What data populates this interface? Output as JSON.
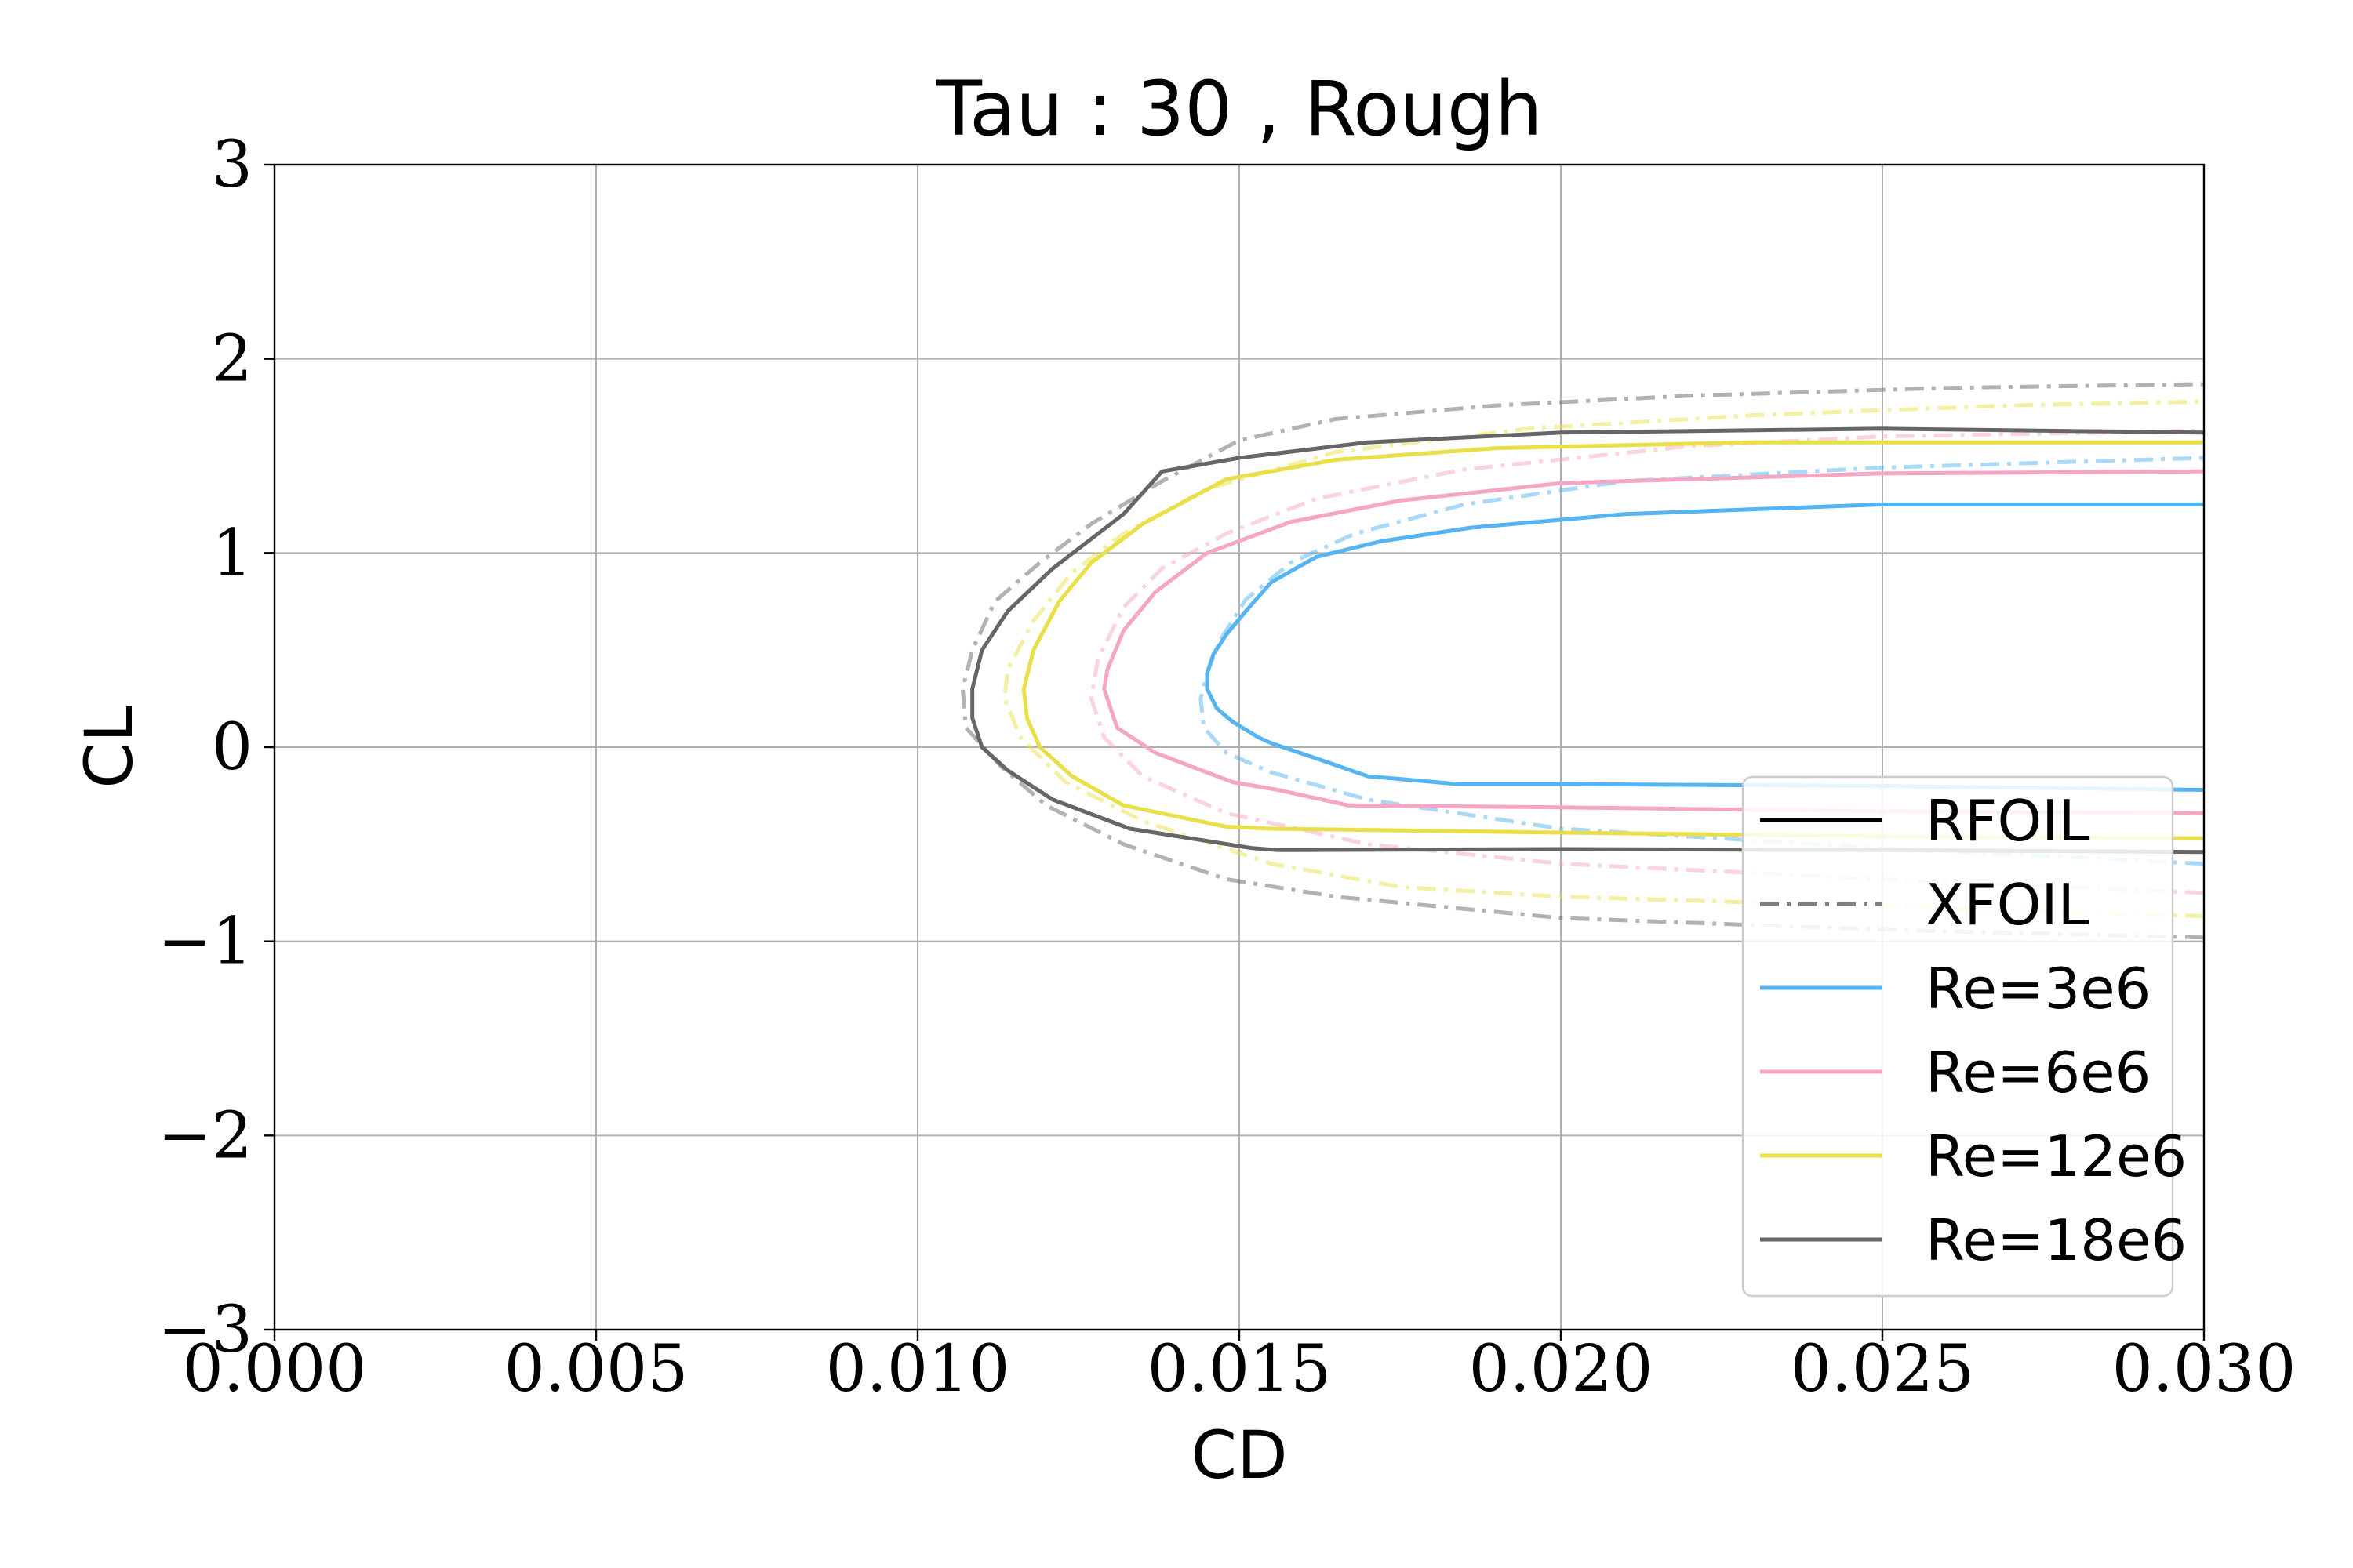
{
  "chart_data": {
    "type": "line",
    "title": "Tau : 30 , Rough",
    "xlabel": "CD",
    "ylabel": "CL",
    "xlim": [
      0.0,
      0.03
    ],
    "ylim": [
      -3,
      3
    ],
    "xticks": [
      0.0,
      0.005,
      0.01,
      0.015,
      0.02,
      0.025,
      0.03
    ],
    "xtick_labels": [
      "0.000",
      "0.005",
      "0.010",
      "0.015",
      "0.020",
      "0.025",
      "0.030"
    ],
    "yticks": [
      -3,
      -2,
      -1,
      0,
      1,
      2,
      3
    ],
    "ytick_labels": [
      "−3",
      "−2",
      "−1",
      "0",
      "1",
      "2",
      "3"
    ],
    "grid": true,
    "legend_position": "lower-right",
    "legend": [
      {
        "label": "RFOIL",
        "color": "#000000",
        "style": "solid"
      },
      {
        "label": "XFOIL",
        "color": "#808080",
        "style": "dashdot"
      },
      {
        "label": "Re=3e6",
        "color": "#56b4f0",
        "style": "solid"
      },
      {
        "label": "Re=6e6",
        "color": "#f5a6c4",
        "style": "solid"
      },
      {
        "label": "Re=12e6",
        "color": "#e9df48",
        "style": "solid"
      },
      {
        "label": "Re=18e6",
        "color": "#666666",
        "style": "solid"
      }
    ],
    "series": [
      {
        "re": "Re=3e6",
        "solver": "RFOIL",
        "color": "#56b4f0",
        "style": "solid",
        "alpha": 1.0,
        "points": [
          [
            0.03,
            -0.22
          ],
          [
            0.025,
            -0.2
          ],
          [
            0.02,
            -0.19
          ],
          [
            0.0184,
            -0.19
          ],
          [
            0.017,
            -0.15
          ],
          [
            0.0163,
            -0.07
          ],
          [
            0.0155,
            0.02
          ],
          [
            0.0153,
            0.05
          ],
          [
            0.0149,
            0.13
          ],
          [
            0.01465,
            0.2
          ],
          [
            0.0145,
            0.3
          ],
          [
            0.0145,
            0.38
          ],
          [
            0.0146,
            0.48
          ],
          [
            0.0148,
            0.58
          ],
          [
            0.0151,
            0.7
          ],
          [
            0.0155,
            0.85
          ],
          [
            0.0162,
            0.98
          ],
          [
            0.0172,
            1.06
          ],
          [
            0.0186,
            1.13
          ],
          [
            0.021,
            1.2
          ],
          [
            0.025,
            1.25
          ],
          [
            0.03,
            1.25
          ]
        ]
      },
      {
        "re": "Re=3e6",
        "solver": "XFOIL",
        "color": "#56b4f0",
        "style": "dashdot",
        "alpha": 0.5,
        "points": [
          [
            0.03,
            -0.6
          ],
          [
            0.025,
            -0.52
          ],
          [
            0.02,
            -0.42
          ],
          [
            0.017,
            -0.27
          ],
          [
            0.0155,
            -0.13
          ],
          [
            0.0148,
            -0.03
          ],
          [
            0.01445,
            0.1
          ],
          [
            0.0144,
            0.25
          ],
          [
            0.0145,
            0.38
          ],
          [
            0.0147,
            0.55
          ],
          [
            0.0151,
            0.76
          ],
          [
            0.0158,
            0.95
          ],
          [
            0.0168,
            1.1
          ],
          [
            0.0185,
            1.25
          ],
          [
            0.021,
            1.37
          ],
          [
            0.025,
            1.44
          ],
          [
            0.03,
            1.49
          ]
        ]
      },
      {
        "re": "Re=6e6",
        "solver": "RFOIL",
        "color": "#f5a6c4",
        "style": "solid",
        "alpha": 1.0,
        "points": [
          [
            0.03,
            -0.34
          ],
          [
            0.025,
            -0.33
          ],
          [
            0.02,
            -0.31
          ],
          [
            0.0167,
            -0.3
          ],
          [
            0.0156,
            -0.22
          ],
          [
            0.0149,
            -0.18
          ],
          [
            0.0137,
            -0.03
          ],
          [
            0.0131,
            0.1
          ],
          [
            0.0129,
            0.3
          ],
          [
            0.01295,
            0.4
          ],
          [
            0.0132,
            0.6
          ],
          [
            0.0137,
            0.8
          ],
          [
            0.0145,
            1.0
          ],
          [
            0.0158,
            1.16
          ],
          [
            0.0175,
            1.27
          ],
          [
            0.02,
            1.36
          ],
          [
            0.025,
            1.41
          ],
          [
            0.03,
            1.42
          ]
        ]
      },
      {
        "re": "Re=6e6",
        "solver": "XFOIL",
        "color": "#f5a6c4",
        "style": "dashdot",
        "alpha": 0.5,
        "points": [
          [
            0.03,
            -0.75
          ],
          [
            0.025,
            -0.68
          ],
          [
            0.02,
            -0.6
          ],
          [
            0.017,
            -0.5
          ],
          [
            0.0148,
            -0.34
          ],
          [
            0.0135,
            -0.15
          ],
          [
            0.0129,
            0.05
          ],
          [
            0.0127,
            0.25
          ],
          [
            0.0128,
            0.45
          ],
          [
            0.0132,
            0.72
          ],
          [
            0.0138,
            0.92
          ],
          [
            0.0148,
            1.1
          ],
          [
            0.0162,
            1.28
          ],
          [
            0.0185,
            1.43
          ],
          [
            0.022,
            1.55
          ],
          [
            0.025,
            1.6
          ],
          [
            0.03,
            1.63
          ]
        ]
      },
      {
        "re": "Re=12e6",
        "solver": "RFOIL",
        "color": "#e9df48",
        "style": "solid",
        "alpha": 1.0,
        "points": [
          [
            0.03,
            -0.47
          ],
          [
            0.025,
            -0.46
          ],
          [
            0.02,
            -0.44
          ],
          [
            0.0155,
            -0.42
          ],
          [
            0.0148,
            -0.41
          ],
          [
            0.0132,
            -0.3
          ],
          [
            0.0124,
            -0.15
          ],
          [
            0.0119,
            0.0
          ],
          [
            0.0117,
            0.15
          ],
          [
            0.01165,
            0.3
          ],
          [
            0.0118,
            0.5
          ],
          [
            0.0122,
            0.75
          ],
          [
            0.0127,
            0.95
          ],
          [
            0.0135,
            1.15
          ],
          [
            0.0148,
            1.38
          ],
          [
            0.0165,
            1.48
          ],
          [
            0.019,
            1.54
          ],
          [
            0.023,
            1.57
          ],
          [
            0.03,
            1.57
          ]
        ]
      },
      {
        "re": "Re=12e6",
        "solver": "XFOIL",
        "color": "#e9df48",
        "style": "dashdot",
        "alpha": 0.5,
        "points": [
          [
            0.03,
            -0.87
          ],
          [
            0.025,
            -0.82
          ],
          [
            0.02,
            -0.77
          ],
          [
            0.0175,
            -0.72
          ],
          [
            0.0155,
            -0.6
          ],
          [
            0.0135,
            -0.38
          ],
          [
            0.0123,
            -0.18
          ],
          [
            0.0116,
            0.05
          ],
          [
            0.01135,
            0.25
          ],
          [
            0.0114,
            0.4
          ],
          [
            0.0118,
            0.65
          ],
          [
            0.0124,
            0.9
          ],
          [
            0.0132,
            1.1
          ],
          [
            0.0145,
            1.33
          ],
          [
            0.0165,
            1.52
          ],
          [
            0.0195,
            1.64
          ],
          [
            0.023,
            1.71
          ],
          [
            0.027,
            1.76
          ],
          [
            0.03,
            1.78
          ]
        ]
      },
      {
        "re": "Re=18e6",
        "solver": "RFOIL",
        "color": "#666666",
        "style": "solid",
        "alpha": 1.0,
        "points": [
          [
            0.03,
            -0.54
          ],
          [
            0.025,
            -0.53
          ],
          [
            0.02,
            -0.525
          ],
          [
            0.0156,
            -0.53
          ],
          [
            0.0152,
            -0.52
          ],
          [
            0.0133,
            -0.42
          ],
          [
            0.0121,
            -0.27
          ],
          [
            0.0114,
            -0.12
          ],
          [
            0.011,
            0.0
          ],
          [
            0.01085,
            0.15
          ],
          [
            0.01085,
            0.3
          ],
          [
            0.011,
            0.5
          ],
          [
            0.0114,
            0.7
          ],
          [
            0.0121,
            0.92
          ],
          [
            0.0132,
            1.2
          ],
          [
            0.0138,
            1.42
          ],
          [
            0.015,
            1.49
          ],
          [
            0.017,
            1.57
          ],
          [
            0.02,
            1.62
          ],
          [
            0.025,
            1.64
          ],
          [
            0.03,
            1.62
          ]
        ]
      },
      {
        "re": "Re=18e6",
        "solver": "XFOIL",
        "color": "#666666",
        "style": "dashdot",
        "alpha": 0.5,
        "points": [
          [
            0.03,
            -0.98
          ],
          [
            0.025,
            -0.94
          ],
          [
            0.02,
            -0.88
          ],
          [
            0.0165,
            -0.77
          ],
          [
            0.0148,
            -0.68
          ],
          [
            0.0132,
            -0.5
          ],
          [
            0.012,
            -0.3
          ],
          [
            0.0113,
            -0.1
          ],
          [
            0.01075,
            0.1
          ],
          [
            0.0107,
            0.3
          ],
          [
            0.01085,
            0.5
          ],
          [
            0.0112,
            0.75
          ],
          [
            0.0119,
            0.95
          ],
          [
            0.0127,
            1.15
          ],
          [
            0.0138,
            1.37
          ],
          [
            0.015,
            1.58
          ],
          [
            0.0165,
            1.69
          ],
          [
            0.019,
            1.76
          ],
          [
            0.022,
            1.81
          ],
          [
            0.026,
            1.85
          ],
          [
            0.03,
            1.87
          ]
        ]
      }
    ]
  }
}
